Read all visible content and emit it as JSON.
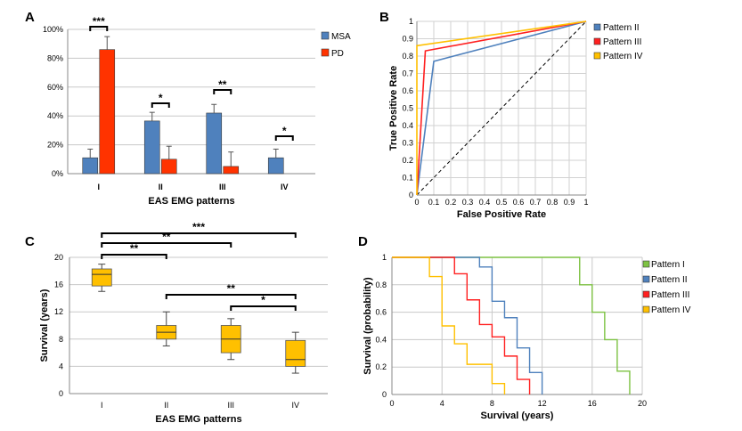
{
  "chart_data": [
    {
      "panel": "A",
      "type": "bar",
      "categories": [
        "I",
        "II",
        "III",
        "IV"
      ],
      "xlabel": "EAS EMG patterns",
      "ylabel": "",
      "ylim": [
        0,
        100
      ],
      "yticks": [
        "0%",
        "20%",
        "40%",
        "60%",
        "80%",
        "100%"
      ],
      "grid": true,
      "legend_position": "top-right",
      "series": [
        {
          "name": "MSA",
          "color": "#4f81bd",
          "values": [
            11,
            36.5,
            42,
            11
          ],
          "errors": [
            6,
            6,
            6,
            6
          ]
        },
        {
          "name": "PD",
          "color": "#ff3300",
          "values": [
            86,
            10,
            5,
            0
          ],
          "errors": [
            9,
            9,
            10,
            0
          ]
        }
      ],
      "significance": [
        {
          "category": "I",
          "label": "***"
        },
        {
          "category": "II",
          "label": "*"
        },
        {
          "category": "III",
          "label": "**"
        },
        {
          "category": "IV",
          "label": "*"
        }
      ]
    },
    {
      "panel": "B",
      "type": "line",
      "xlabel": "False Positive Rate",
      "ylabel": "True Positive Rate",
      "xlim": [
        0,
        1
      ],
      "ylim": [
        0,
        1
      ],
      "ticks": [
        "0",
        "0.1",
        "0.2",
        "0.3",
        "0.4",
        "0.5",
        "0.6",
        "0.7",
        "0.8",
        "0.9",
        "1"
      ],
      "grid": true,
      "legend_position": "top-right",
      "series": [
        {
          "name": "Pattern II",
          "color": "#4f81bd",
          "x": [
            0,
            0.1,
            1
          ],
          "y": [
            0,
            0.77,
            1
          ]
        },
        {
          "name": "Pattern III",
          "color": "#ff2020",
          "x": [
            0,
            0.05,
            1
          ],
          "y": [
            0,
            0.83,
            1
          ]
        },
        {
          "name": "Pattern IV",
          "color": "#ffc000",
          "x": [
            0,
            0,
            1
          ],
          "y": [
            0,
            0.86,
            1
          ]
        }
      ],
      "reference_line": {
        "style": "dashed",
        "color": "#000000",
        "x": [
          0,
          1
        ],
        "y": [
          0,
          1
        ]
      }
    },
    {
      "panel": "C",
      "type": "box",
      "categories": [
        "I",
        "II",
        "III",
        "IV"
      ],
      "xlabel": "EAS EMG patterns",
      "ylabel": "Survival (years)",
      "ylim": [
        0,
        20
      ],
      "yticks": [
        "0",
        "4",
        "8",
        "12",
        "16",
        "20"
      ],
      "grid": true,
      "box_color": "#ffc000",
      "boxes": [
        {
          "category": "I",
          "min": 15,
          "q1": 15.8,
          "median": 17.5,
          "q3": 18.3,
          "max": 19
        },
        {
          "category": "II",
          "min": 7,
          "q1": 8,
          "median": 9,
          "q3": 10,
          "max": 12
        },
        {
          "category": "III",
          "min": 5,
          "q1": 6,
          "median": 8,
          "q3": 10,
          "max": 11
        },
        {
          "category": "IV",
          "min": 3,
          "q1": 4,
          "median": 5,
          "q3": 7.8,
          "max": 9
        }
      ],
      "significance": [
        {
          "from": "I",
          "to": "IV",
          "label": "***"
        },
        {
          "from": "I",
          "to": "III",
          "label": "**"
        },
        {
          "from": "I",
          "to": "II",
          "label": "**"
        },
        {
          "from": "II",
          "to": "IV",
          "label": "**"
        },
        {
          "from": "III",
          "to": "IV",
          "label": "*"
        }
      ]
    },
    {
      "panel": "D",
      "type": "line",
      "subtype": "step",
      "xlabel": "Survival (years)",
      "ylabel": "Survival (probability)",
      "xlim": [
        0,
        20
      ],
      "ylim": [
        0,
        1
      ],
      "xticks": [
        "0",
        "4",
        "8",
        "12",
        "16",
        "20"
      ],
      "yticks": [
        "0",
        "0.2",
        "0.4",
        "0.6",
        "0.8",
        "1"
      ],
      "grid": true,
      "legend_position": "right",
      "series": [
        {
          "name": "Pattern I",
          "color": "#7dc242",
          "x": [
            0,
            15,
            16,
            17,
            18,
            19
          ],
          "y": [
            1,
            0.8,
            0.6,
            0.4,
            0.17,
            0
          ]
        },
        {
          "name": "Pattern II",
          "color": "#4f81bd",
          "x": [
            0,
            7,
            8,
            9,
            10,
            11,
            12
          ],
          "y": [
            1,
            0.93,
            0.68,
            0.56,
            0.34,
            0.16,
            0
          ]
        },
        {
          "name": "Pattern III",
          "color": "#ff2020",
          "x": [
            0,
            5,
            6,
            7,
            8,
            9,
            10,
            11
          ],
          "y": [
            1,
            0.88,
            0.69,
            0.51,
            0.42,
            0.28,
            0.11,
            0
          ]
        },
        {
          "name": "Pattern IV",
          "color": "#ffc000",
          "x": [
            0,
            3,
            4,
            5,
            6,
            8,
            9
          ],
          "y": [
            1,
            0.86,
            0.5,
            0.37,
            0.22,
            0.08,
            0
          ]
        }
      ]
    }
  ]
}
